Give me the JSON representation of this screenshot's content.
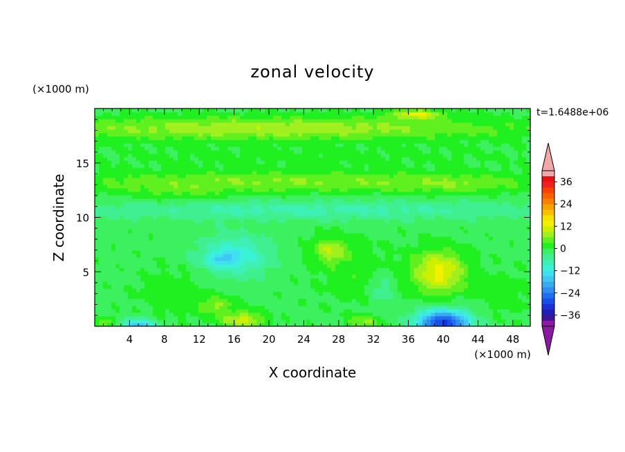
{
  "chart_data": {
    "type": "heatmap",
    "title": "zonal velocity",
    "xlabel": "X coordinate",
    "ylabel": "Z coordinate",
    "x_unit": "(×1000 m)",
    "y_unit": "(×1000 m)",
    "time_label": "t=1.6488e+06",
    "xlim": [
      0,
      50
    ],
    "ylim": [
      0,
      20
    ],
    "x_ticks": [
      4,
      8,
      12,
      16,
      20,
      24,
      28,
      32,
      36,
      40,
      44,
      48
    ],
    "y_ticks": [
      5,
      10,
      15
    ],
    "colorbar": {
      "levels": [
        -42,
        -39,
        -36,
        -33,
        -30,
        -27,
        -24,
        -21,
        -18,
        -15,
        -12,
        -9,
        -6,
        -3,
        0,
        3,
        6,
        9,
        12,
        15,
        18,
        21,
        24,
        27,
        30,
        33,
        36,
        39,
        42
      ],
      "labels": [
        36,
        24,
        12,
        0,
        -12,
        -24,
        -36
      ],
      "colors": [
        "#8b1aa3",
        "#3a1796",
        "#1f1fb8",
        "#1a30d8",
        "#1a4fe6",
        "#1f6ef0",
        "#2d8ef0",
        "#3aaaf0",
        "#40c8f5",
        "#40e0f0",
        "#3af2d8",
        "#3ef0b4",
        "#40f090",
        "#3df060",
        "#20f020",
        "#60f020",
        "#a0f020",
        "#ccf000",
        "#f0f000",
        "#f8e000",
        "#f8c000",
        "#f8a000",
        "#f88000",
        "#f86000",
        "#f84000",
        "#f02020",
        "#e81010",
        "#f0a8a8"
      ],
      "over_color": "#f0a8a8",
      "under_color": "#8b1aa3"
    },
    "background_level": -1,
    "features": [
      {
        "x": 20,
        "z": 18.2,
        "sx": 30,
        "sz": 1.1,
        "v": 9
      },
      {
        "x": 25,
        "z": 15.6,
        "sx": 30,
        "sz": 0.9,
        "v": 2
      },
      {
        "x": 22,
        "z": 13.3,
        "sx": 28,
        "sz": 1.0,
        "v": 7
      },
      {
        "x": 25,
        "z": 10.7,
        "sx": 30,
        "sz": 0.9,
        "v": -6
      },
      {
        "x": 16,
        "z": 6.5,
        "sx": 4.0,
        "sz": 1.8,
        "v": -11
      },
      {
        "x": 14.5,
        "z": 6.2,
        "sx": 1.5,
        "sz": 0.5,
        "v": -7
      },
      {
        "x": 39.5,
        "z": 5.0,
        "sx": 3.0,
        "sz": 2.0,
        "v": 14
      },
      {
        "x": 40,
        "z": 0.3,
        "sx": 3.0,
        "sz": 1.2,
        "v": -30
      },
      {
        "x": 5,
        "z": 0.1,
        "sx": 2.0,
        "sz": 0.6,
        "v": -16
      },
      {
        "x": 27,
        "z": 7.0,
        "sx": 2.0,
        "sz": 1.2,
        "v": 9
      },
      {
        "x": 14,
        "z": 2.0,
        "sx": 2.0,
        "sz": 0.8,
        "v": 7
      },
      {
        "x": 17,
        "z": 0.6,
        "sx": 2.5,
        "sz": 0.8,
        "v": 11
      },
      {
        "x": 31,
        "z": 0.4,
        "sx": 2.0,
        "sz": 0.6,
        "v": 7
      },
      {
        "x": 33,
        "z": 3.5,
        "sx": 1.5,
        "sz": 1.5,
        "v": -5
      },
      {
        "x": 30,
        "z": 5.0,
        "sx": 4.5,
        "sz": 2.8,
        "v": 3
      },
      {
        "x": 9,
        "z": 3.0,
        "sx": 4.0,
        "sz": 2.5,
        "v": 3
      },
      {
        "x": 47,
        "z": 3.0,
        "sx": 3.0,
        "sz": 2.0,
        "v": 3
      },
      {
        "x": 1.5,
        "z": 0.4,
        "sx": 1.2,
        "sz": 0.5,
        "v": 6
      },
      {
        "x": 37,
        "z": 19.5,
        "sx": 3.0,
        "sz": 0.4,
        "v": 12
      },
      {
        "x": 9.5,
        "z": 12.2,
        "sx": 6.0,
        "sz": 0.8,
        "v": 3
      },
      {
        "x": 42,
        "z": 13.0,
        "sx": 7.0,
        "sz": 0.8,
        "v": 3
      }
    ]
  }
}
